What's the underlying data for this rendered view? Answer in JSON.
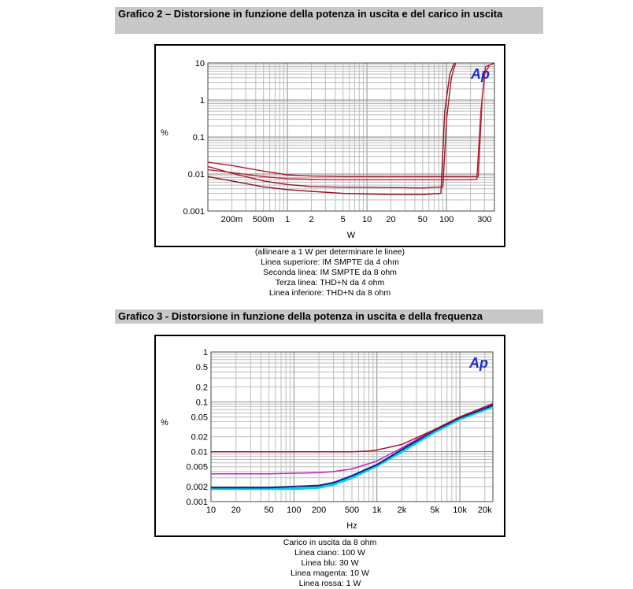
{
  "chart2": {
    "heading": "Grafico 2 – Distorsione in funzione della potenza in uscita e del carico in uscita",
    "caption_lines": [
      "(allineare a 1 W per determinare le linee)",
      "Linea superiore: IM SMPTE da 4 ohm",
      "Seconda linea: IM SMPTE da 8 ohm",
      "Terza linea: THD+N da 4 ohm",
      "Linea inferiore: THD+N da 8 ohm"
    ],
    "logo": "Ap"
  },
  "chart3": {
    "heading": "Grafico 3 - Distorsione in funzione della potenza in uscita e della frequenza",
    "caption_lines": [
      "Carico in uscita da 8 ohm",
      "Linea ciano: 100 W",
      "Linea blu: 30 W",
      "Linea magenta: 10 W",
      "Linea rossa: 1 W"
    ],
    "logo": "Ap"
  },
  "chart_data": [
    {
      "type": "line",
      "x_scale": "log",
      "y_scale": "log",
      "xlabel": "W",
      "ylabel": "%",
      "xlim": [
        0.1,
        400
      ],
      "ylim": [
        0.001,
        10
      ],
      "x_ticks": [
        {
          "v": 0.2,
          "l": "200m"
        },
        {
          "v": 0.5,
          "l": "500m"
        },
        {
          "v": 1,
          "l": "1"
        },
        {
          "v": 2,
          "l": "2"
        },
        {
          "v": 5,
          "l": "5"
        },
        {
          "v": 10,
          "l": "10"
        },
        {
          "v": 20,
          "l": "20"
        },
        {
          "v": 50,
          "l": "50"
        },
        {
          "v": 100,
          "l": "100"
        },
        {
          "v": 300,
          "l": "300"
        }
      ],
      "y_ticks": [
        {
          "v": 10,
          "l": "10"
        },
        {
          "v": 1,
          "l": "1"
        },
        {
          "v": 0.1,
          "l": "0.1"
        },
        {
          "v": 0.01,
          "l": "0.01"
        },
        {
          "v": 0.001,
          "l": "0.001"
        }
      ],
      "grid": true,
      "series": [
        {
          "color": "#b01a2a",
          "points": [
            [
              0.1,
              0.021
            ],
            [
              0.2,
              0.017
            ],
            [
              0.5,
              0.012
            ],
            [
              1,
              0.0095
            ],
            [
              2,
              0.0088
            ],
            [
              5,
              0.0085
            ],
            [
              20,
              0.0085
            ],
            [
              100,
              0.0085
            ],
            [
              200,
              0.0085
            ],
            [
              250,
              0.0085
            ],
            [
              280,
              1
            ],
            [
              310,
              8
            ],
            [
              400,
              10
            ]
          ]
        },
        {
          "color": "#c02040",
          "points": [
            [
              0.1,
              0.013
            ],
            [
              0.2,
              0.011
            ],
            [
              0.5,
              0.0085
            ],
            [
              1,
              0.0075
            ],
            [
              2,
              0.0072
            ],
            [
              5,
              0.007
            ],
            [
              20,
              0.007
            ],
            [
              100,
              0.007
            ],
            [
              200,
              0.007
            ],
            [
              240,
              0.0072
            ],
            [
              270,
              0.5
            ],
            [
              300,
              5
            ],
            [
              350,
              9
            ]
          ]
        },
        {
          "color": "#a01525",
          "points": [
            [
              0.1,
              0.016
            ],
            [
              0.2,
              0.0105
            ],
            [
              0.5,
              0.0065
            ],
            [
              1,
              0.0052
            ],
            [
              2,
              0.0046
            ],
            [
              5,
              0.0044
            ],
            [
              20,
              0.0043
            ],
            [
              50,
              0.0042
            ],
            [
              90,
              0.0045
            ],
            [
              100,
              0.3
            ],
            [
              115,
              4
            ],
            [
              130,
              10
            ]
          ]
        },
        {
          "color": "#901020",
          "points": [
            [
              0.1,
              0.0085
            ],
            [
              0.2,
              0.0065
            ],
            [
              0.5,
              0.0045
            ],
            [
              1,
              0.0038
            ],
            [
              2,
              0.0034
            ],
            [
              5,
              0.003
            ],
            [
              20,
              0.0028
            ],
            [
              50,
              0.0028
            ],
            [
              85,
              0.003
            ],
            [
              95,
              0.5
            ],
            [
              110,
              5
            ],
            [
              125,
              10
            ]
          ]
        }
      ]
    },
    {
      "type": "line",
      "x_scale": "log",
      "y_scale": "log",
      "xlabel": "Hz",
      "ylabel": "%",
      "xlim": [
        10,
        25000
      ],
      "ylim": [
        0.001,
        1
      ],
      "x_ticks": [
        {
          "v": 10,
          "l": "10"
        },
        {
          "v": 20,
          "l": "20"
        },
        {
          "v": 50,
          "l": "50"
        },
        {
          "v": 100,
          "l": "100"
        },
        {
          "v": 200,
          "l": "200"
        },
        {
          "v": 500,
          "l": "500"
        },
        {
          "v": 1000,
          "l": "1k"
        },
        {
          "v": 2000,
          "l": "2k"
        },
        {
          "v": 5000,
          "l": "5k"
        },
        {
          "v": 10000,
          "l": "10k"
        },
        {
          "v": 20000,
          "l": "20k"
        }
      ],
      "y_ticks": [
        {
          "v": 1,
          "l": "1"
        },
        {
          "v": 0.5,
          "l": "0.5"
        },
        {
          "v": 0.2,
          "l": "0.2"
        },
        {
          "v": 0.1,
          "l": "0.1"
        },
        {
          "v": 0.05,
          "l": "0.05"
        },
        {
          "v": 0.02,
          "l": "0.02"
        },
        {
          "v": 0.01,
          "l": "0.01"
        },
        {
          "v": 0.005,
          "l": "0.005"
        },
        {
          "v": 0.002,
          "l": "0.002"
        },
        {
          "v": 0.001,
          "l": "0.001"
        }
      ],
      "grid": true,
      "series": [
        {
          "color": "#00d0f0",
          "width": 3,
          "points": [
            [
              10,
              0.0018
            ],
            [
              50,
              0.0018
            ],
            [
              100,
              0.0018
            ],
            [
              200,
              0.0019
            ],
            [
              300,
              0.0022
            ],
            [
              500,
              0.003
            ],
            [
              1000,
              0.0052
            ],
            [
              2000,
              0.01
            ],
            [
              5000,
              0.025
            ],
            [
              10000,
              0.045
            ],
            [
              25000,
              0.08
            ]
          ]
        },
        {
          "color": "#102080",
          "width": 2,
          "points": [
            [
              10,
              0.0019
            ],
            [
              50,
              0.0019
            ],
            [
              100,
              0.002
            ],
            [
              200,
              0.0021
            ],
            [
              300,
              0.0024
            ],
            [
              500,
              0.0033
            ],
            [
              1000,
              0.0055
            ],
            [
              2000,
              0.011
            ],
            [
              5000,
              0.027
            ],
            [
              10000,
              0.048
            ],
            [
              25000,
              0.085
            ]
          ]
        },
        {
          "color": "#c020c0",
          "width": 1.5,
          "points": [
            [
              10,
              0.0036
            ],
            [
              50,
              0.0036
            ],
            [
              100,
              0.0037
            ],
            [
              200,
              0.0038
            ],
            [
              300,
              0.004
            ],
            [
              500,
              0.0045
            ],
            [
              1000,
              0.0065
            ],
            [
              2000,
              0.012
            ],
            [
              5000,
              0.028
            ],
            [
              10000,
              0.05
            ],
            [
              25000,
              0.09
            ]
          ]
        },
        {
          "color": "#a01525",
          "width": 1.5,
          "points": [
            [
              10,
              0.01
            ],
            [
              100,
              0.01
            ],
            [
              500,
              0.01
            ],
            [
              800,
              0.0103
            ],
            [
              1000,
              0.0108
            ],
            [
              2000,
              0.014
            ],
            [
              5000,
              0.028
            ],
            [
              10000,
              0.05
            ],
            [
              25000,
              0.092
            ]
          ]
        }
      ]
    }
  ]
}
